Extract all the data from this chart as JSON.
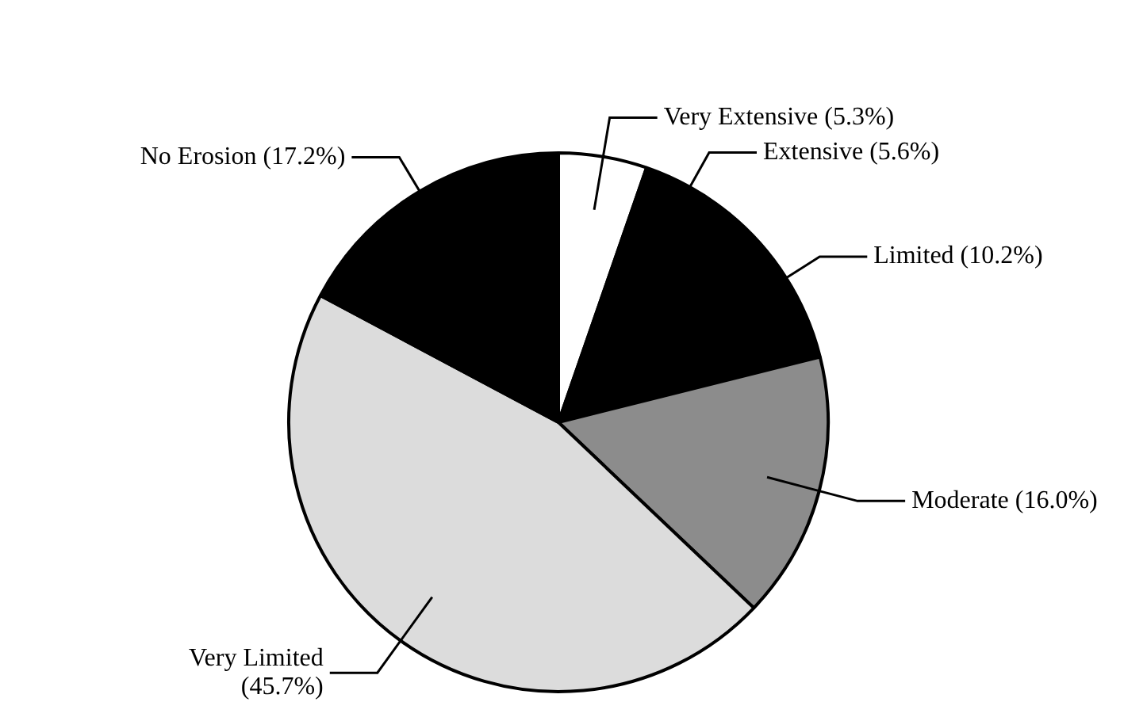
{
  "chart_data": {
    "type": "pie",
    "categories": [
      "Very Extensive",
      "Extensive",
      "Limited",
      "Moderate",
      "Very Limited",
      "No Erosion"
    ],
    "values": [
      5.3,
      5.6,
      10.2,
      16.0,
      45.7,
      17.2
    ],
    "value_labels": [
      "(5.3%)",
      "(5.6%)",
      "(10.2%)",
      "(16.0%)",
      "(45.7%)",
      "(17.2%)"
    ],
    "colors": [
      "#ffffff",
      "#000000",
      "#000000",
      "#8c8c8c",
      "#dcdcdc",
      "#000000"
    ],
    "legend": false
  }
}
